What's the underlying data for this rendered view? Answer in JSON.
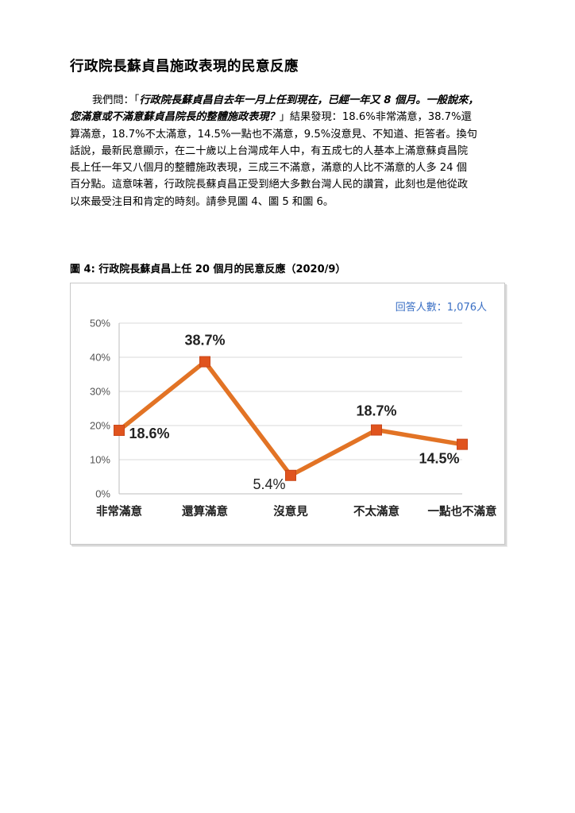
{
  "heading": "行政院長蘇貞昌施政表現的民意反應",
  "paragraph": {
    "lead": "我們問：「",
    "question_line1": "行政院長蘇貞昌自去年一月上任到現在，已經一年又 8 個月。一般說來，",
    "question_line2": "您滿意或不滿意蘇貞昌院長的整體施政表現？",
    "question_close": "」結果發現：18.6%非常滿意，38.7%還",
    "line3": "算滿意，18.7%不太滿意，14.5%一點也不滿意，9.5%沒意見、不知道、拒答者。換句",
    "line4": "話說，最新民意顯示，在二十歲以上台灣成年人中，有五成七的人基本上滿意蘇貞昌院",
    "line5": "長上任一年又八個月的整體施政表現，三成三不滿意，滿意的人比不滿意的人多 24 個",
    "line6": "百分點。這意味著，行政院長蘇貞昌正受到絕大多數台灣人民的讚賞，此刻也是他從政",
    "line7": "以來最受注目和肯定的時刻。請參見圖 4、圖 5 和圖 6。"
  },
  "figure_caption": "圖 4:  行政院長蘇貞昌上任 20 個月的民意反應（2020/9）",
  "respondents_label": "回答人數：1,076人",
  "colors": {
    "line": "#e27325",
    "marker": "#e0541e",
    "grid": "#d9d9d9",
    "note": "#3a6fc4"
  },
  "chart_data": {
    "type": "line",
    "categories": [
      "非常滿意",
      "還算滿意",
      "沒意見",
      "不太滿意",
      "一點也不滿意"
    ],
    "values": [
      18.6,
      38.7,
      5.4,
      18.7,
      14.5
    ],
    "data_labels": [
      "18.6%",
      "38.7%",
      "5.4%",
      "18.7%",
      "14.5%"
    ],
    "y_ticks": [
      "0%",
      "10%",
      "20%",
      "30%",
      "40%",
      "50%"
    ],
    "ylim": [
      0,
      50
    ],
    "grid": true,
    "title": "",
    "xlabel": "",
    "ylabel": ""
  }
}
